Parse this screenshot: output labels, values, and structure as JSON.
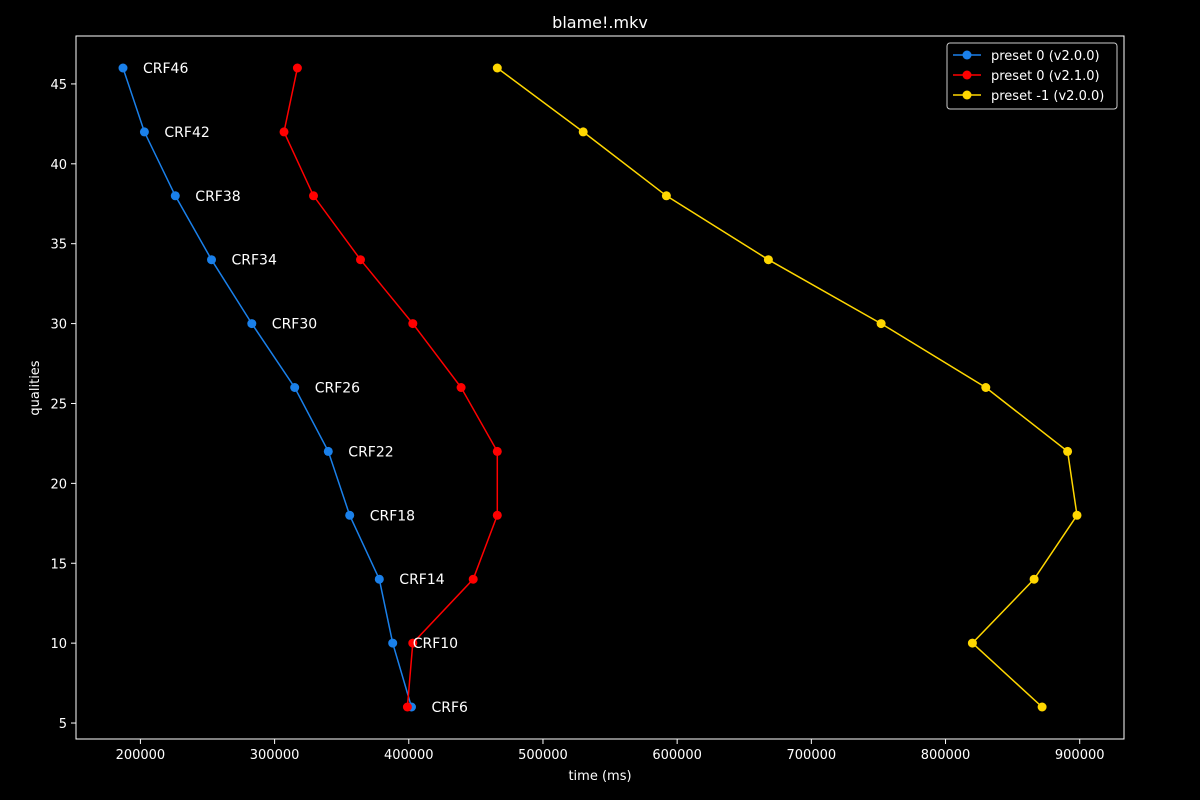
{
  "chart_data": {
    "type": "line",
    "title": "blame!.mkv",
    "xlabel": "time (ms)",
    "ylabel": "qualities",
    "xlim": [
      152000,
      933000
    ],
    "ylim": [
      4,
      48
    ],
    "xticks": [
      200000,
      300000,
      400000,
      500000,
      600000,
      700000,
      800000,
      900000
    ],
    "yticks": [
      5,
      10,
      15,
      20,
      25,
      30,
      35,
      40,
      45
    ],
    "grid": false,
    "legend_position": "top-right",
    "y_values": [
      46,
      42,
      38,
      34,
      30,
      26,
      22,
      18,
      14,
      10,
      6
    ],
    "series": [
      {
        "name": "preset 0 (v2.0.0)",
        "color": "#1a80ea",
        "x": [
          187000,
          203000,
          226000,
          253000,
          283000,
          315000,
          340000,
          356000,
          378000,
          388000,
          402000
        ],
        "y": [
          46,
          42,
          38,
          34,
          30,
          26,
          22,
          18,
          14,
          10,
          6
        ]
      },
      {
        "name": "preset 0 (v2.1.0)",
        "color": "#ff0000",
        "x": [
          317000,
          307000,
          329000,
          364000,
          403000,
          439000,
          466000,
          466000,
          448000,
          403000,
          399000
        ],
        "y": [
          46,
          42,
          38,
          34,
          30,
          26,
          22,
          18,
          14,
          10,
          6
        ]
      },
      {
        "name": "preset -1 (v2.0.0)",
        "color": "#ffd700",
        "x": [
          466000,
          530000,
          592000,
          668000,
          752000,
          830000,
          891000,
          898000,
          866000,
          820000,
          872000
        ],
        "y": [
          46,
          42,
          38,
          34,
          30,
          26,
          22,
          18,
          14,
          10,
          6
        ]
      }
    ],
    "annotations": [
      {
        "text": "CRF46",
        "x": 187000,
        "y": 46
      },
      {
        "text": "CRF42",
        "x": 203000,
        "y": 42
      },
      {
        "text": "CRF38",
        "x": 226000,
        "y": 38
      },
      {
        "text": "CRF34",
        "x": 253000,
        "y": 34
      },
      {
        "text": "CRF30",
        "x": 283000,
        "y": 30
      },
      {
        "text": "CRF26",
        "x": 315000,
        "y": 26
      },
      {
        "text": "CRF22",
        "x": 340000,
        "y": 22
      },
      {
        "text": "CRF18",
        "x": 356000,
        "y": 18
      },
      {
        "text": "CRF14",
        "x": 378000,
        "y": 14
      },
      {
        "text": "CRF10",
        "x": 388000,
        "y": 10
      },
      {
        "text": "CRF6",
        "x": 402000,
        "y": 6
      }
    ]
  }
}
